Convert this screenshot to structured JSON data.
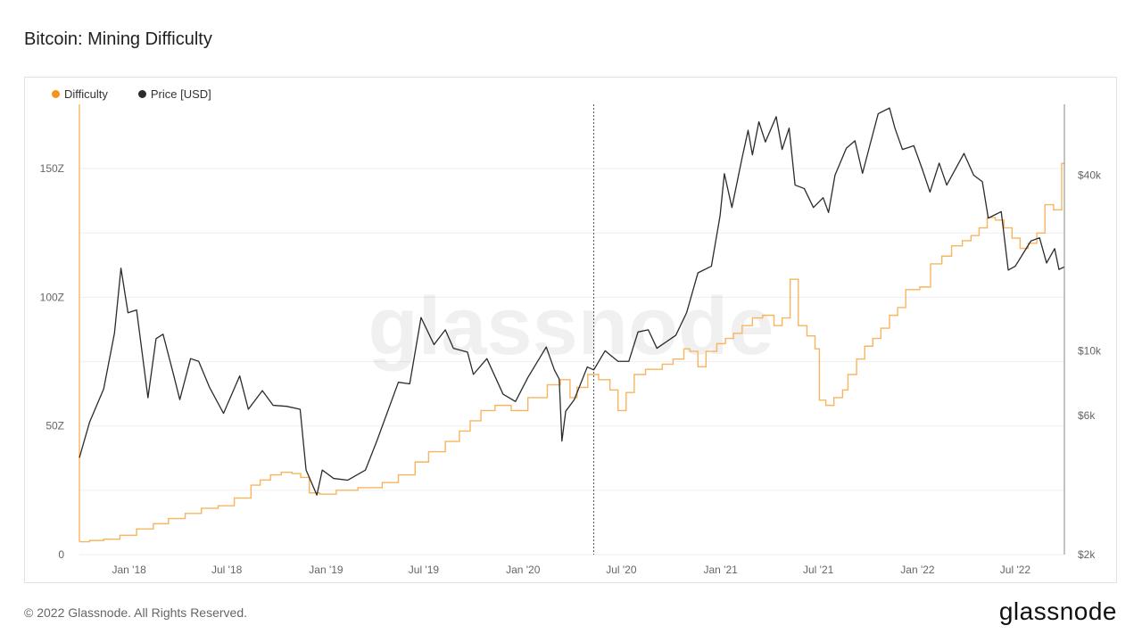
{
  "page": {
    "title": "Bitcoin: Mining Difficulty",
    "copyright": "© 2022 Glassnode. All Rights Reserved.",
    "logo_text": "glassnode",
    "watermark": "glassnode"
  },
  "colors": {
    "difficulty": "#f7931a",
    "difficulty_line": "#f7b560",
    "price": "#2b2b2b",
    "grid": "#efefef",
    "axis_text": "#666666",
    "marker": "#555555"
  },
  "chart_data": {
    "type": "line",
    "title": "Bitcoin: Mining Difficulty",
    "legend": {
      "placement": "top-left"
    },
    "grid": true,
    "x_range": [
      "2017-10-01",
      "2022-09-30"
    ],
    "x_ticks": [
      {
        "date": "2018-01-01",
        "label": "Jan '18"
      },
      {
        "date": "2018-07-01",
        "label": "Jul '18"
      },
      {
        "date": "2019-01-01",
        "label": "Jan '19"
      },
      {
        "date": "2019-07-01",
        "label": "Jul '19"
      },
      {
        "date": "2020-01-01",
        "label": "Jan '20"
      },
      {
        "date": "2020-07-01",
        "label": "Jul '20"
      },
      {
        "date": "2021-01-01",
        "label": "Jan '21"
      },
      {
        "date": "2021-07-01",
        "label": "Jul '21"
      },
      {
        "date": "2022-01-01",
        "label": "Jan '22"
      },
      {
        "date": "2022-07-01",
        "label": "Jul '22"
      }
    ],
    "left_axis": {
      "scale": "linear",
      "range": [
        0,
        175
      ],
      "ticks": [
        {
          "value": 0,
          "label": "0"
        },
        {
          "value": 50,
          "label": "50Z"
        },
        {
          "value": 100,
          "label": "100Z"
        },
        {
          "value": 150,
          "label": "150Z"
        }
      ]
    },
    "right_axis": {
      "scale": "log",
      "range": [
        2000,
        70000
      ],
      "ticks": [
        {
          "value": 2000,
          "label": "$2k"
        },
        {
          "value": 6000,
          "label": "$6k"
        },
        {
          "value": 10000,
          "label": "$10k"
        },
        {
          "value": 40000,
          "label": "$40k"
        }
      ]
    },
    "vertical_marker": "2020-05-11",
    "series": [
      {
        "name": "Difficulty",
        "axis": "left",
        "step": true,
        "points": [
          [
            "2017-10-01",
            5
          ],
          [
            "2017-10-20",
            5.5
          ],
          [
            "2017-11-15",
            6
          ],
          [
            "2017-12-15",
            7.5
          ],
          [
            "2018-01-15",
            10
          ],
          [
            "2018-02-15",
            12
          ],
          [
            "2018-03-15",
            14
          ],
          [
            "2018-04-15",
            16
          ],
          [
            "2018-05-15",
            18
          ],
          [
            "2018-06-15",
            19
          ],
          [
            "2018-07-15",
            22
          ],
          [
            "2018-08-15",
            27
          ],
          [
            "2018-09-01",
            29
          ],
          [
            "2018-09-20",
            31
          ],
          [
            "2018-10-10",
            32
          ],
          [
            "2018-10-30",
            31.5
          ],
          [
            "2018-11-15",
            30
          ],
          [
            "2018-12-01",
            24
          ],
          [
            "2018-12-20",
            23.5
          ],
          [
            "2019-01-20",
            25
          ],
          [
            "2019-03-01",
            26
          ],
          [
            "2019-04-15",
            28
          ],
          [
            "2019-05-15",
            31
          ],
          [
            "2019-06-15",
            36
          ],
          [
            "2019-07-10",
            40
          ],
          [
            "2019-08-10",
            44
          ],
          [
            "2019-09-05",
            48
          ],
          [
            "2019-09-25",
            52
          ],
          [
            "2019-10-15",
            56
          ],
          [
            "2019-11-10",
            58
          ],
          [
            "2019-12-10",
            56
          ],
          [
            "2020-01-10",
            61
          ],
          [
            "2020-02-15",
            66
          ],
          [
            "2020-03-10",
            68
          ],
          [
            "2020-03-28",
            61
          ],
          [
            "2020-04-10",
            65
          ],
          [
            "2020-04-30",
            70
          ],
          [
            "2020-05-20",
            68
          ],
          [
            "2020-06-10",
            64
          ],
          [
            "2020-06-25",
            56
          ],
          [
            "2020-07-10",
            63
          ],
          [
            "2020-07-25",
            70
          ],
          [
            "2020-08-15",
            72
          ],
          [
            "2020-09-15",
            74
          ],
          [
            "2020-10-05",
            76
          ],
          [
            "2020-10-25",
            80
          ],
          [
            "2020-11-05",
            79
          ],
          [
            "2020-11-20",
            73
          ],
          [
            "2020-12-05",
            79
          ],
          [
            "2020-12-25",
            82
          ],
          [
            "2021-01-10",
            84
          ],
          [
            "2021-01-25",
            86
          ],
          [
            "2021-02-10",
            89
          ],
          [
            "2021-03-01",
            92
          ],
          [
            "2021-03-20",
            93
          ],
          [
            "2021-04-10",
            89
          ],
          [
            "2021-04-25",
            92
          ],
          [
            "2021-05-10",
            107
          ],
          [
            "2021-05-25",
            89
          ],
          [
            "2021-06-10",
            85
          ],
          [
            "2021-06-25",
            80
          ],
          [
            "2021-07-03",
            60
          ],
          [
            "2021-07-15",
            58
          ],
          [
            "2021-07-30",
            61
          ],
          [
            "2021-08-15",
            64
          ],
          [
            "2021-08-25",
            70
          ],
          [
            "2021-09-10",
            76
          ],
          [
            "2021-09-25",
            81
          ],
          [
            "2021-10-10",
            84
          ],
          [
            "2021-10-25",
            88
          ],
          [
            "2021-11-10",
            93
          ],
          [
            "2021-11-25",
            96
          ],
          [
            "2021-12-10",
            103
          ],
          [
            "2022-01-05",
            104
          ],
          [
            "2022-01-25",
            113
          ],
          [
            "2022-02-15",
            116
          ],
          [
            "2022-03-05",
            120
          ],
          [
            "2022-03-25",
            122
          ],
          [
            "2022-04-10",
            124
          ],
          [
            "2022-04-25",
            127
          ],
          [
            "2022-05-10",
            131
          ],
          [
            "2022-05-25",
            130
          ],
          [
            "2022-06-10",
            127
          ],
          [
            "2022-06-25",
            123
          ],
          [
            "2022-07-10",
            119
          ],
          [
            "2022-07-25",
            121
          ],
          [
            "2022-08-10",
            125
          ],
          [
            "2022-08-25",
            136
          ],
          [
            "2022-09-10",
            134
          ],
          [
            "2022-09-25",
            152
          ]
        ]
      },
      {
        "name": "Price [USD]",
        "axis": "right",
        "step": false,
        "points": [
          [
            "2017-10-01",
            4300
          ],
          [
            "2017-10-20",
            5700
          ],
          [
            "2017-11-15",
            7400
          ],
          [
            "2017-12-05",
            11500
          ],
          [
            "2017-12-17",
            19200
          ],
          [
            "2017-12-30",
            13500
          ],
          [
            "2018-01-15",
            13800
          ],
          [
            "2018-02-05",
            6900
          ],
          [
            "2018-02-20",
            11000
          ],
          [
            "2018-03-05",
            11400
          ],
          [
            "2018-03-25",
            8200
          ],
          [
            "2018-04-05",
            6800
          ],
          [
            "2018-04-25",
            9400
          ],
          [
            "2018-05-10",
            9200
          ],
          [
            "2018-05-30",
            7500
          ],
          [
            "2018-06-25",
            6100
          ],
          [
            "2018-07-25",
            8200
          ],
          [
            "2018-08-10",
            6300
          ],
          [
            "2018-09-05",
            7300
          ],
          [
            "2018-09-25",
            6500
          ],
          [
            "2018-10-20",
            6450
          ],
          [
            "2018-11-14",
            6300
          ],
          [
            "2018-11-25",
            3900
          ],
          [
            "2018-12-15",
            3200
          ],
          [
            "2018-12-25",
            3900
          ],
          [
            "2019-01-15",
            3650
          ],
          [
            "2019-02-10",
            3600
          ],
          [
            "2019-03-15",
            3900
          ],
          [
            "2019-04-05",
            4900
          ],
          [
            "2019-05-15",
            7800
          ],
          [
            "2019-06-05",
            7700
          ],
          [
            "2019-06-26",
            13000
          ],
          [
            "2019-07-20",
            10500
          ],
          [
            "2019-08-10",
            11800
          ],
          [
            "2019-08-25",
            10200
          ],
          [
            "2019-09-20",
            9900
          ],
          [
            "2019-10-01",
            8300
          ],
          [
            "2019-10-26",
            9400
          ],
          [
            "2019-11-25",
            7100
          ],
          [
            "2019-12-18",
            6700
          ],
          [
            "2020-01-10",
            8100
          ],
          [
            "2020-02-13",
            10300
          ],
          [
            "2020-02-28",
            8600
          ],
          [
            "2020-03-08",
            8000
          ],
          [
            "2020-03-13",
            4900
          ],
          [
            "2020-03-20",
            6200
          ],
          [
            "2020-04-05",
            6800
          ],
          [
            "2020-04-29",
            8800
          ],
          [
            "2020-05-11",
            8600
          ],
          [
            "2020-06-01",
            10000
          ],
          [
            "2020-06-25",
            9200
          ],
          [
            "2020-07-15",
            9200
          ],
          [
            "2020-08-01",
            11600
          ],
          [
            "2020-08-20",
            11800
          ],
          [
            "2020-09-05",
            10200
          ],
          [
            "2020-10-10",
            11300
          ],
          [
            "2020-10-30",
            13500
          ],
          [
            "2020-11-20",
            18500
          ],
          [
            "2020-12-15",
            19500
          ],
          [
            "2020-12-31",
            29000
          ],
          [
            "2021-01-08",
            40500
          ],
          [
            "2021-01-22",
            31000
          ],
          [
            "2021-02-10",
            46000
          ],
          [
            "2021-02-21",
            57000
          ],
          [
            "2021-03-01",
            47000
          ],
          [
            "2021-03-13",
            61000
          ],
          [
            "2021-03-25",
            52000
          ],
          [
            "2021-04-14",
            63500
          ],
          [
            "2021-04-25",
            49000
          ],
          [
            "2021-05-08",
            58000
          ],
          [
            "2021-05-19",
            37000
          ],
          [
            "2021-06-05",
            36000
          ],
          [
            "2021-06-22",
            31000
          ],
          [
            "2021-07-10",
            33500
          ],
          [
            "2021-07-20",
            29800
          ],
          [
            "2021-08-01",
            40000
          ],
          [
            "2021-08-22",
            49500
          ],
          [
            "2021-09-07",
            52500
          ],
          [
            "2021-09-21",
            40600
          ],
          [
            "2021-10-05",
            51000
          ],
          [
            "2021-10-20",
            65000
          ],
          [
            "2021-11-10",
            68000
          ],
          [
            "2021-11-20",
            58000
          ],
          [
            "2021-12-04",
            49000
          ],
          [
            "2021-12-25",
            50500
          ],
          [
            "2022-01-10",
            41800
          ],
          [
            "2022-01-24",
            35000
          ],
          [
            "2022-02-10",
            44000
          ],
          [
            "2022-02-24",
            37000
          ],
          [
            "2022-03-28",
            47500
          ],
          [
            "2022-04-15",
            40000
          ],
          [
            "2022-05-01",
            38000
          ],
          [
            "2022-05-12",
            28500
          ],
          [
            "2022-06-05",
            30000
          ],
          [
            "2022-06-18",
            18900
          ],
          [
            "2022-07-01",
            19500
          ],
          [
            "2022-07-30",
            23800
          ],
          [
            "2022-08-15",
            24400
          ],
          [
            "2022-08-28",
            20000
          ],
          [
            "2022-09-12",
            22400
          ],
          [
            "2022-09-20",
            19000
          ],
          [
            "2022-09-30",
            19400
          ]
        ]
      }
    ]
  }
}
